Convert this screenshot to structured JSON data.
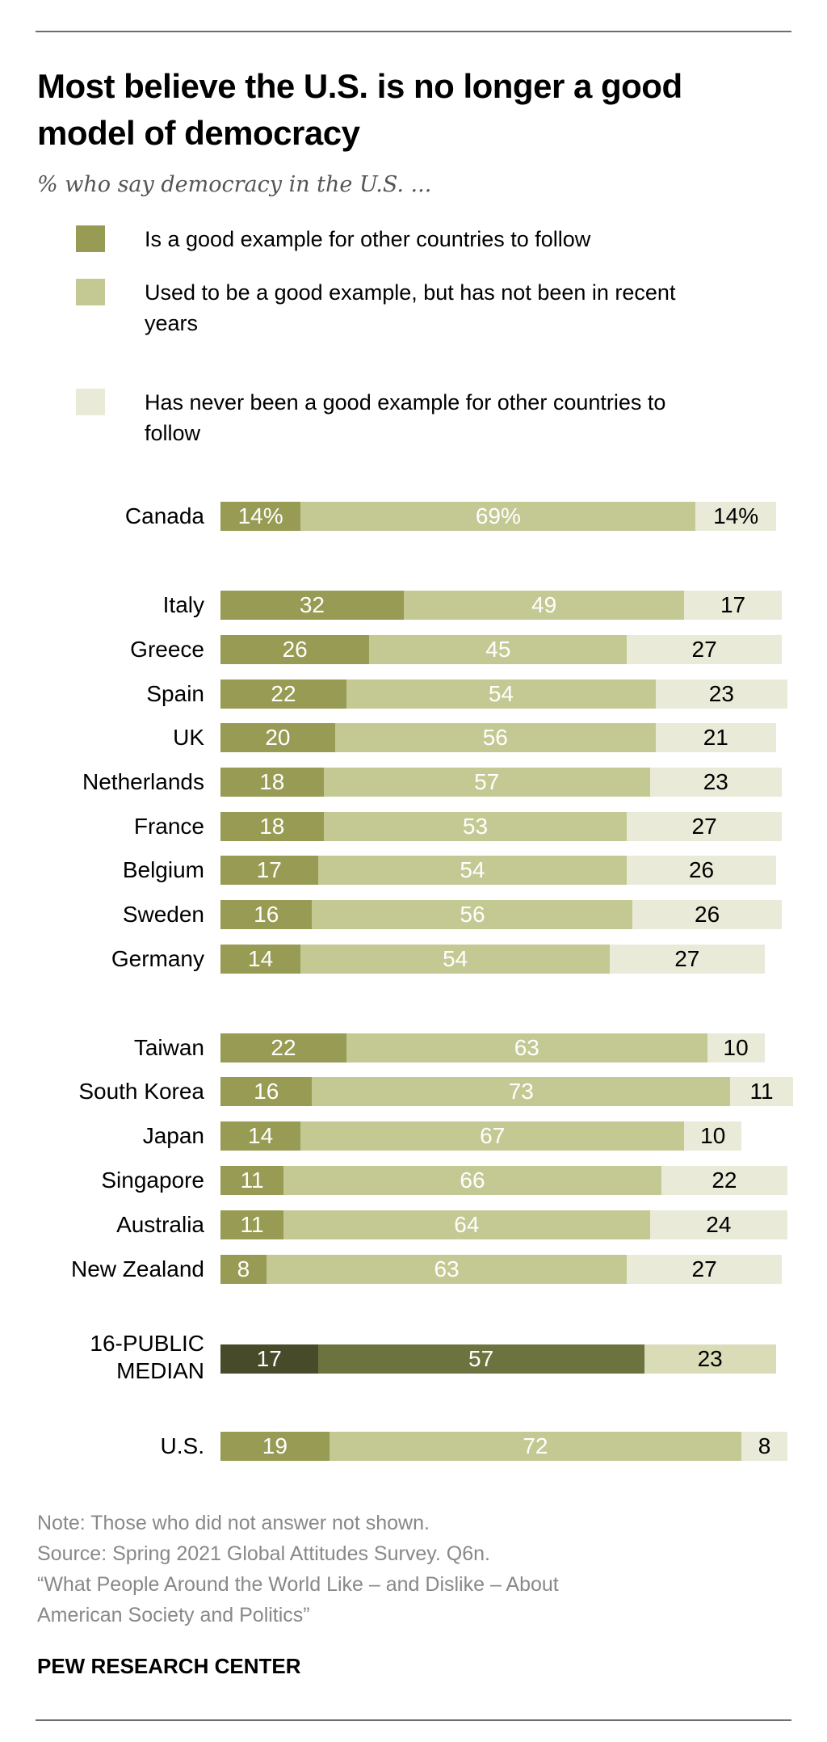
{
  "title": "Most believe the U.S. is no longer a good model of democracy",
  "subtitle": "% who say democracy in the U.S. ...",
  "legend": [
    {
      "label": "Is a good example for other countries to follow",
      "color": "#979b53"
    },
    {
      "label": "Used to be a good example, but has not been in recent years",
      "color": "#c4c994"
    },
    {
      "label": "Has never been a good example for other countries to follow",
      "color": "#e9ebd8"
    }
  ],
  "chart_data": {
    "type": "bar",
    "orientation": "horizontal-stacked",
    "xlim": [
      0,
      100
    ],
    "categories": [
      "Canada",
      "Italy",
      "Greece",
      "Spain",
      "UK",
      "Netherlands",
      "France",
      "Belgium",
      "Sweden",
      "Germany",
      "Taiwan",
      "South Korea",
      "Japan",
      "Singapore",
      "Australia",
      "New Zealand",
      "16-PUBLIC MEDIAN",
      "U.S."
    ],
    "series": [
      {
        "name": "Is a good example for other countries to follow",
        "values": [
          14,
          32,
          26,
          22,
          20,
          18,
          18,
          17,
          16,
          14,
          22,
          16,
          14,
          11,
          11,
          8,
          17,
          19
        ]
      },
      {
        "name": "Used to be a good example, but has not been in recent years",
        "values": [
          69,
          49,
          45,
          54,
          56,
          57,
          53,
          54,
          56,
          54,
          63,
          73,
          67,
          66,
          64,
          63,
          57,
          72
        ]
      },
      {
        "name": "Has never been a good example for other countries to follow",
        "values": [
          14,
          17,
          27,
          23,
          21,
          23,
          27,
          26,
          26,
          27,
          10,
          11,
          10,
          22,
          24,
          27,
          23,
          8
        ]
      }
    ],
    "first_row_suffix": "%",
    "median_colors": [
      "#474b2a",
      "#6c733e",
      "#d9dcb7"
    ],
    "grid": false
  },
  "notes": [
    "Note: Those who did not answer not shown.",
    "Source: Spring 2021 Global Attitudes Survey. Q6n.",
    "“What People Around the World Like – and Dislike – About",
    "American Society and Politics”"
  ],
  "source_org": "PEW RESEARCH CENTER"
}
